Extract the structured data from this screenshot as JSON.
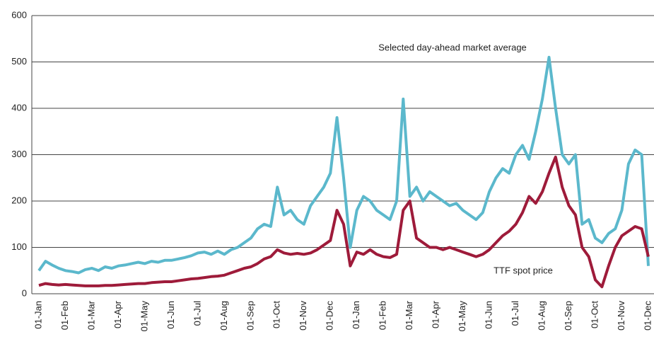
{
  "chart_data": {
    "type": "line",
    "categories": [
      "01-Jan",
      null,
      null,
      null,
      "01-Feb",
      null,
      null,
      null,
      "01-Mar",
      null,
      null,
      null,
      "01-Apr",
      null,
      null,
      null,
      "01-May",
      null,
      null,
      null,
      "01-Jun",
      null,
      null,
      null,
      "01-Jul",
      null,
      null,
      null,
      "01-Aug",
      null,
      null,
      null,
      "01-Sep",
      null,
      null,
      null,
      "01-Oct",
      null,
      null,
      null,
      "01-Nov",
      null,
      null,
      null,
      "01-Dec",
      null,
      null,
      null,
      "01-Jan",
      null,
      null,
      null,
      "01-Feb",
      null,
      null,
      null,
      "01-Mar",
      null,
      null,
      null,
      "01-Apr",
      null,
      null,
      null,
      "01-May",
      null,
      null,
      null,
      "01-Jun",
      null,
      null,
      null,
      "01-Jul",
      null,
      null,
      null,
      "01-Aug",
      null,
      null,
      null,
      "01-Sep",
      null,
      null,
      null,
      "01-Oct",
      null,
      null,
      null,
      "01-Nov",
      null,
      null,
      null,
      "01-Dec"
    ],
    "series": [
      {
        "name": "Selected day-ahead market average",
        "color": "#5bb8cc",
        "values": [
          50,
          70,
          62,
          55,
          50,
          48,
          45,
          52,
          55,
          50,
          58,
          55,
          60,
          62,
          65,
          68,
          65,
          70,
          68,
          72,
          72,
          75,
          78,
          82,
          88,
          90,
          85,
          92,
          85,
          95,
          100,
          110,
          120,
          140,
          150,
          145,
          230,
          170,
          180,
          160,
          150,
          190,
          210,
          230,
          260,
          380,
          250,
          100,
          180,
          210,
          200,
          180,
          170,
          160,
          200,
          420,
          210,
          230,
          200,
          220,
          210,
          200,
          190,
          195,
          180,
          170,
          160,
          175,
          220,
          250,
          270,
          260,
          300,
          320,
          290,
          350,
          420,
          510,
          400,
          300,
          280,
          300,
          150,
          160,
          120,
          110,
          130,
          140,
          180,
          280,
          310,
          300,
          60
        ]
      },
      {
        "name": "TTF spot price",
        "color": "#9e1b3a",
        "values": [
          18,
          22,
          20,
          19,
          20,
          19,
          18,
          17,
          17,
          17,
          18,
          18,
          19,
          20,
          21,
          22,
          22,
          24,
          25,
          26,
          26,
          28,
          30,
          32,
          33,
          35,
          37,
          38,
          40,
          45,
          50,
          55,
          58,
          65,
          75,
          80,
          95,
          88,
          85,
          87,
          85,
          88,
          95,
          105,
          115,
          180,
          150,
          60,
          90,
          85,
          95,
          85,
          80,
          78,
          85,
          180,
          200,
          120,
          110,
          100,
          100,
          95,
          100,
          95,
          90,
          85,
          80,
          85,
          95,
          110,
          125,
          135,
          150,
          175,
          210,
          195,
          220,
          260,
          295,
          230,
          190,
          170,
          100,
          80,
          30,
          15,
          60,
          100,
          125,
          135,
          145,
          140,
          80
        ]
      }
    ],
    "ylim": [
      0,
      600
    ],
    "yticks": [
      0,
      100,
      200,
      300,
      400,
      500,
      600
    ],
    "grid": true
  }
}
